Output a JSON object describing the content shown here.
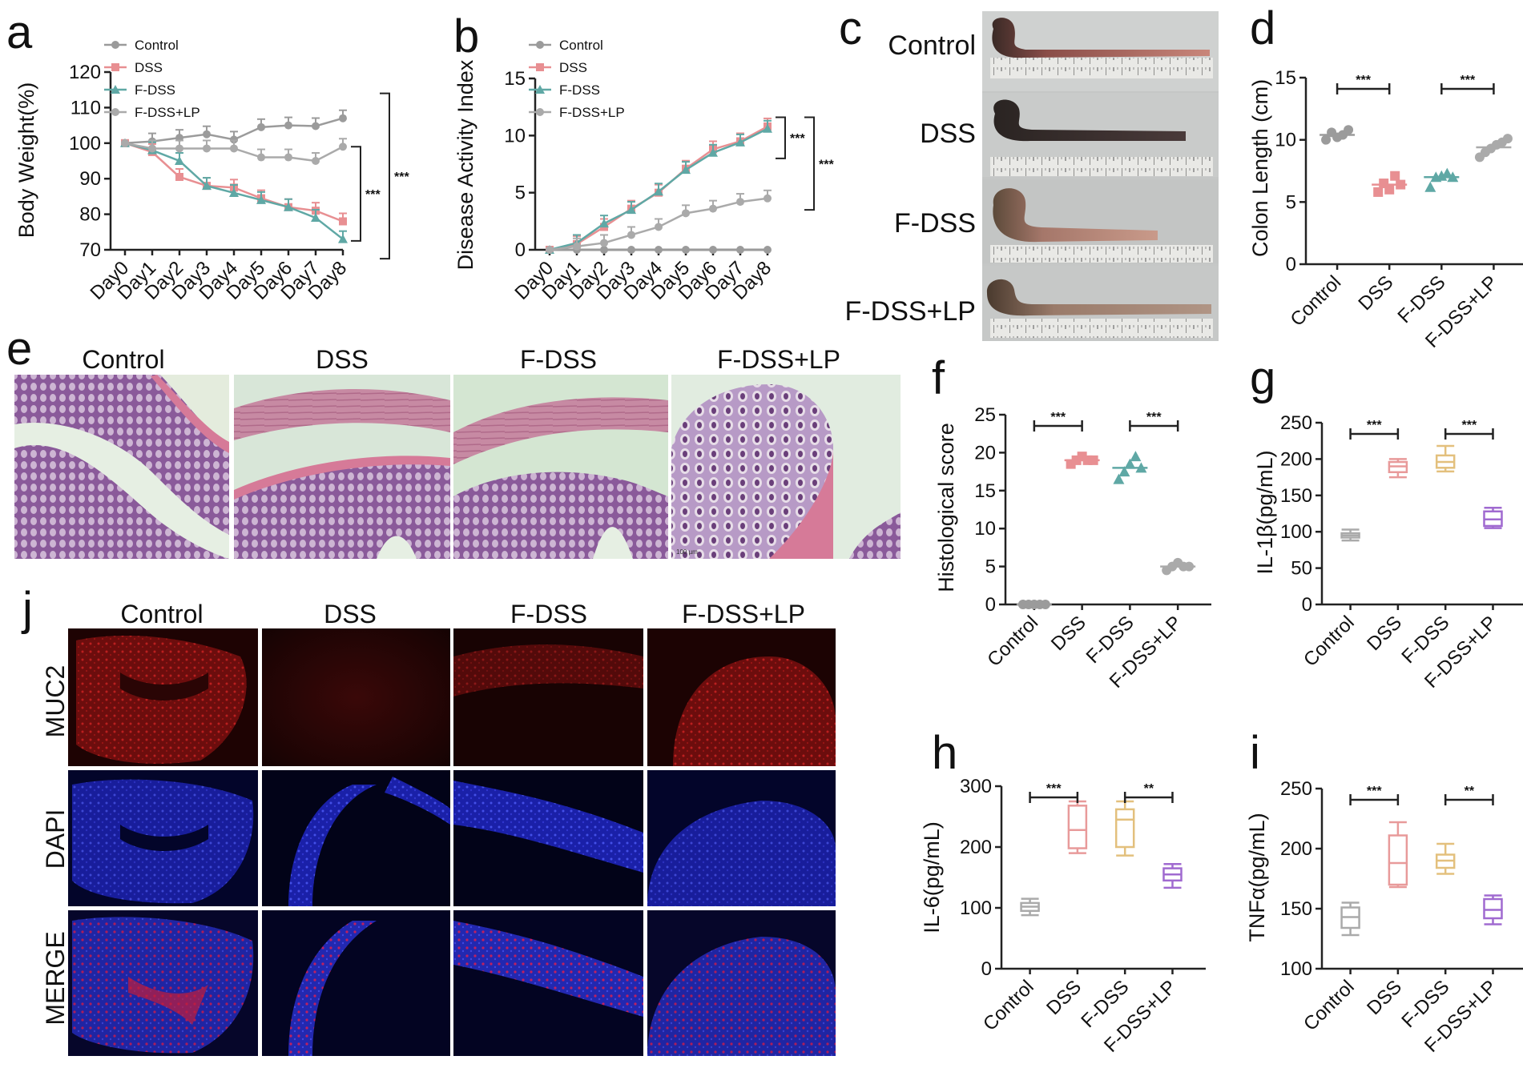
{
  "panels": {
    "a": "a",
    "b": "b",
    "c": "c",
    "d": "d",
    "e": "e",
    "f": "f",
    "g": "g",
    "h": "h",
    "i": "i",
    "j": "j"
  },
  "groups": [
    "Control",
    "DSS",
    "F-DSS",
    "F-DSS+LP"
  ],
  "colors": {
    "Control": "#9b9b9b",
    "DSS": "#e88f92",
    "F-DSS": "#5fa8a5",
    "F-DSS+LP": "#aaaaaa",
    "box_Control": "#aaaaaa",
    "box_DSS": "#e89a9a",
    "box_F-DSS": "#e3c07d",
    "box_F-DSS+LP": "#a06ad0"
  },
  "photo_c": {
    "labels": [
      "Control",
      "DSS",
      "F-DSS",
      "F-DSS+LP"
    ]
  },
  "histology_e": {
    "headers": [
      "Control",
      "DSS",
      "F-DSS",
      "F-DSS+LP"
    ],
    "scale_text": "100 µm"
  },
  "fluorescence_j": {
    "headers": [
      "Control",
      "DSS",
      "F-DSS",
      "F-DSS+LP"
    ],
    "rows": [
      "MUC2",
      "DAPI",
      "MERGE"
    ]
  },
  "chart_data": [
    {
      "id": "a",
      "type": "line",
      "ylabel": "Body Weight(%)",
      "xlabel": "",
      "categories": [
        "Day0",
        "Day1",
        "Day2",
        "Day3",
        "Day4",
        "Day5",
        "Day6",
        "Day7",
        "Day8"
      ],
      "ylim": [
        70,
        120
      ],
      "yticks": [
        70,
        80,
        90,
        100,
        110,
        120
      ],
      "legend_placement": "top-left",
      "series": [
        {
          "name": "Control",
          "marker": "circle",
          "values": [
            100,
            100.5,
            101.5,
            102.5,
            101,
            104.5,
            105,
            104.8,
            107
          ]
        },
        {
          "name": "DSS",
          "marker": "square",
          "values": [
            100,
            97.5,
            90.5,
            88,
            87.5,
            84.5,
            82,
            81,
            78
          ]
        },
        {
          "name": "F-DSS",
          "marker": "triangle",
          "values": [
            100,
            98,
            95,
            88,
            86,
            84,
            82,
            79,
            73
          ]
        },
        {
          "name": "F-DSS+LP",
          "marker": "circle",
          "values": [
            100,
            98.5,
            98.5,
            98.5,
            98.5,
            96,
            96,
            95,
            99
          ]
        }
      ],
      "significance": [
        "***",
        "***"
      ]
    },
    {
      "id": "b",
      "type": "line",
      "ylabel": "Disease Activity Index",
      "xlabel": "",
      "categories": [
        "Day0",
        "Day1",
        "Day2",
        "Day3",
        "Day4",
        "Day5",
        "Day6",
        "Day7",
        "Day8"
      ],
      "ylim": [
        0,
        15
      ],
      "yticks": [
        0,
        5,
        10,
        15
      ],
      "legend_placement": "top-left",
      "series": [
        {
          "name": "Control",
          "marker": "circle",
          "values": [
            0,
            0,
            0,
            0,
            0,
            0,
            0,
            0,
            0
          ]
        },
        {
          "name": "DSS",
          "marker": "square",
          "values": [
            0,
            0.5,
            2.0,
            3.6,
            5.0,
            7.1,
            8.8,
            9.5,
            10.8
          ]
        },
        {
          "name": "F-DSS",
          "marker": "triangle",
          "values": [
            0,
            0.6,
            2.3,
            3.5,
            5.1,
            7.0,
            8.5,
            9.4,
            10.6
          ]
        },
        {
          "name": "F-DSS+LP",
          "marker": "circle",
          "values": [
            0,
            0.3,
            0.6,
            1.3,
            2.0,
            3.2,
            3.6,
            4.2,
            4.5
          ]
        }
      ],
      "significance": [
        "***",
        "***"
      ]
    },
    {
      "id": "d",
      "type": "scatter",
      "ylabel": "Colon Length (cm)",
      "categories": [
        "Control",
        "DSS",
        "F-DSS",
        "F-DSS+LP"
      ],
      "ylim": [
        0,
        15
      ],
      "yticks": [
        0,
        5,
        10,
        15
      ],
      "points": [
        [
          10.0,
          10.6,
          10.2,
          10.4,
          10.8
        ],
        [
          5.8,
          6.5,
          6.0,
          7.1,
          6.4
        ],
        [
          6.2,
          7.0,
          7.1,
          7.3,
          7.0
        ],
        [
          8.6,
          9.0,
          9.3,
          9.6,
          9.8,
          10.1
        ]
      ],
      "means": [
        10.4,
        6.4,
        7.0,
        9.4
      ],
      "significance": [
        {
          "pair": [
            0,
            1
          ],
          "label": "***"
        },
        {
          "pair": [
            2,
            3
          ],
          "label": "***"
        }
      ]
    },
    {
      "id": "f",
      "type": "scatter",
      "ylabel": "Histological score",
      "categories": [
        "Control",
        "DSS",
        "F-DSS",
        "F-DSS+LP"
      ],
      "ylim": [
        0,
        25
      ],
      "yticks": [
        0,
        5,
        10,
        15,
        20,
        25
      ],
      "points": [
        [
          0,
          0,
          0,
          0,
          0
        ],
        [
          18.5,
          19,
          19.5,
          19,
          19
        ],
        [
          16.5,
          17.5,
          18.5,
          19.5,
          18
        ],
        [
          4.5,
          5,
          5.5,
          5,
          5
        ]
      ],
      "means": [
        0,
        19,
        18,
        5
      ],
      "significance": [
        {
          "pair": [
            0,
            1
          ],
          "label": "***"
        },
        {
          "pair": [
            2,
            3
          ],
          "label": "***"
        }
      ]
    },
    {
      "id": "g",
      "type": "box",
      "ylabel": "IL-1β(pg/mL)",
      "categories": [
        "Control",
        "DSS",
        "F-DSS",
        "F-DSS+LP"
      ],
      "ylim": [
        0,
        250
      ],
      "yticks": [
        0,
        50,
        100,
        150,
        200,
        250
      ],
      "boxes": [
        {
          "min": 88,
          "q1": 92,
          "median": 95,
          "q3": 98,
          "max": 103
        },
        {
          "min": 175,
          "q1": 182,
          "median": 190,
          "q3": 196,
          "max": 200
        },
        {
          "min": 183,
          "q1": 188,
          "median": 196,
          "q3": 205,
          "max": 218
        },
        {
          "min": 105,
          "q1": 108,
          "median": 117,
          "q3": 128,
          "max": 133
        }
      ],
      "significance": [
        {
          "pair": [
            0,
            1
          ],
          "label": "***"
        },
        {
          "pair": [
            2,
            3
          ],
          "label": "***"
        }
      ]
    },
    {
      "id": "h",
      "type": "box",
      "ylabel": "IL-6(pg/mL)",
      "categories": [
        "Control",
        "DSS",
        "F-DSS",
        "F-DSS+LP"
      ],
      "ylim": [
        0,
        300
      ],
      "yticks": [
        0,
        100,
        200,
        300
      ],
      "boxes": [
        {
          "min": 88,
          "q1": 95,
          "median": 102,
          "q3": 108,
          "max": 115
        },
        {
          "min": 190,
          "q1": 198,
          "median": 228,
          "q3": 268,
          "max": 275
        },
        {
          "min": 186,
          "q1": 200,
          "median": 245,
          "q3": 262,
          "max": 275
        },
        {
          "min": 133,
          "q1": 145,
          "median": 155,
          "q3": 165,
          "max": 172
        }
      ],
      "significance": [
        {
          "pair": [
            0,
            1
          ],
          "label": "***"
        },
        {
          "pair": [
            2,
            3
          ],
          "label": "**"
        }
      ]
    },
    {
      "id": "i",
      "type": "box",
      "ylabel": "TNFα(pg/mL)",
      "categories": [
        "Control",
        "DSS",
        "F-DSS",
        "F-DSS+LP"
      ],
      "ylim": [
        100,
        250
      ],
      "yticks": [
        100,
        150,
        200,
        250
      ],
      "boxes": [
        {
          "min": 128,
          "q1": 134,
          "median": 143,
          "q3": 151,
          "max": 155
        },
        {
          "min": 168,
          "q1": 170,
          "median": 188,
          "q3": 211,
          "max": 222
        },
        {
          "min": 179,
          "q1": 184,
          "median": 190,
          "q3": 195,
          "max": 204
        },
        {
          "min": 137,
          "q1": 142,
          "median": 149,
          "q3": 158,
          "max": 161
        }
      ],
      "significance": [
        {
          "pair": [
            0,
            1
          ],
          "label": "***"
        },
        {
          "pair": [
            2,
            3
          ],
          "label": "**"
        }
      ]
    }
  ]
}
